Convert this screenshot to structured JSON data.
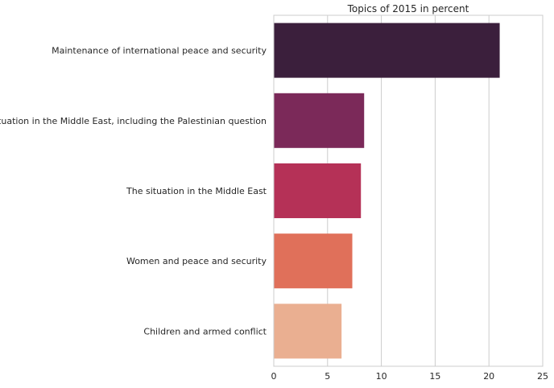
{
  "chart_data": {
    "type": "bar",
    "orientation": "horizontal",
    "title": "Topics of 2015 in percent",
    "xlabel": "",
    "ylabel": "",
    "categories": [
      "Maintenance of international peace and security",
      "The situation in the Middle East, including the Palestinian question",
      "The situation in the Middle East",
      "Women and peace and security",
      "Children and armed conflict"
    ],
    "values": [
      21.0,
      8.4,
      8.1,
      7.3,
      6.3
    ],
    "colors": [
      "#3b1f3c",
      "#7b2959",
      "#b53157",
      "#e0705a",
      "#eaaf91"
    ],
    "xlim": [
      0,
      25
    ],
    "xticks": [
      0,
      5,
      10,
      15,
      20,
      25
    ],
    "grid": "vertical",
    "legend": "none"
  }
}
